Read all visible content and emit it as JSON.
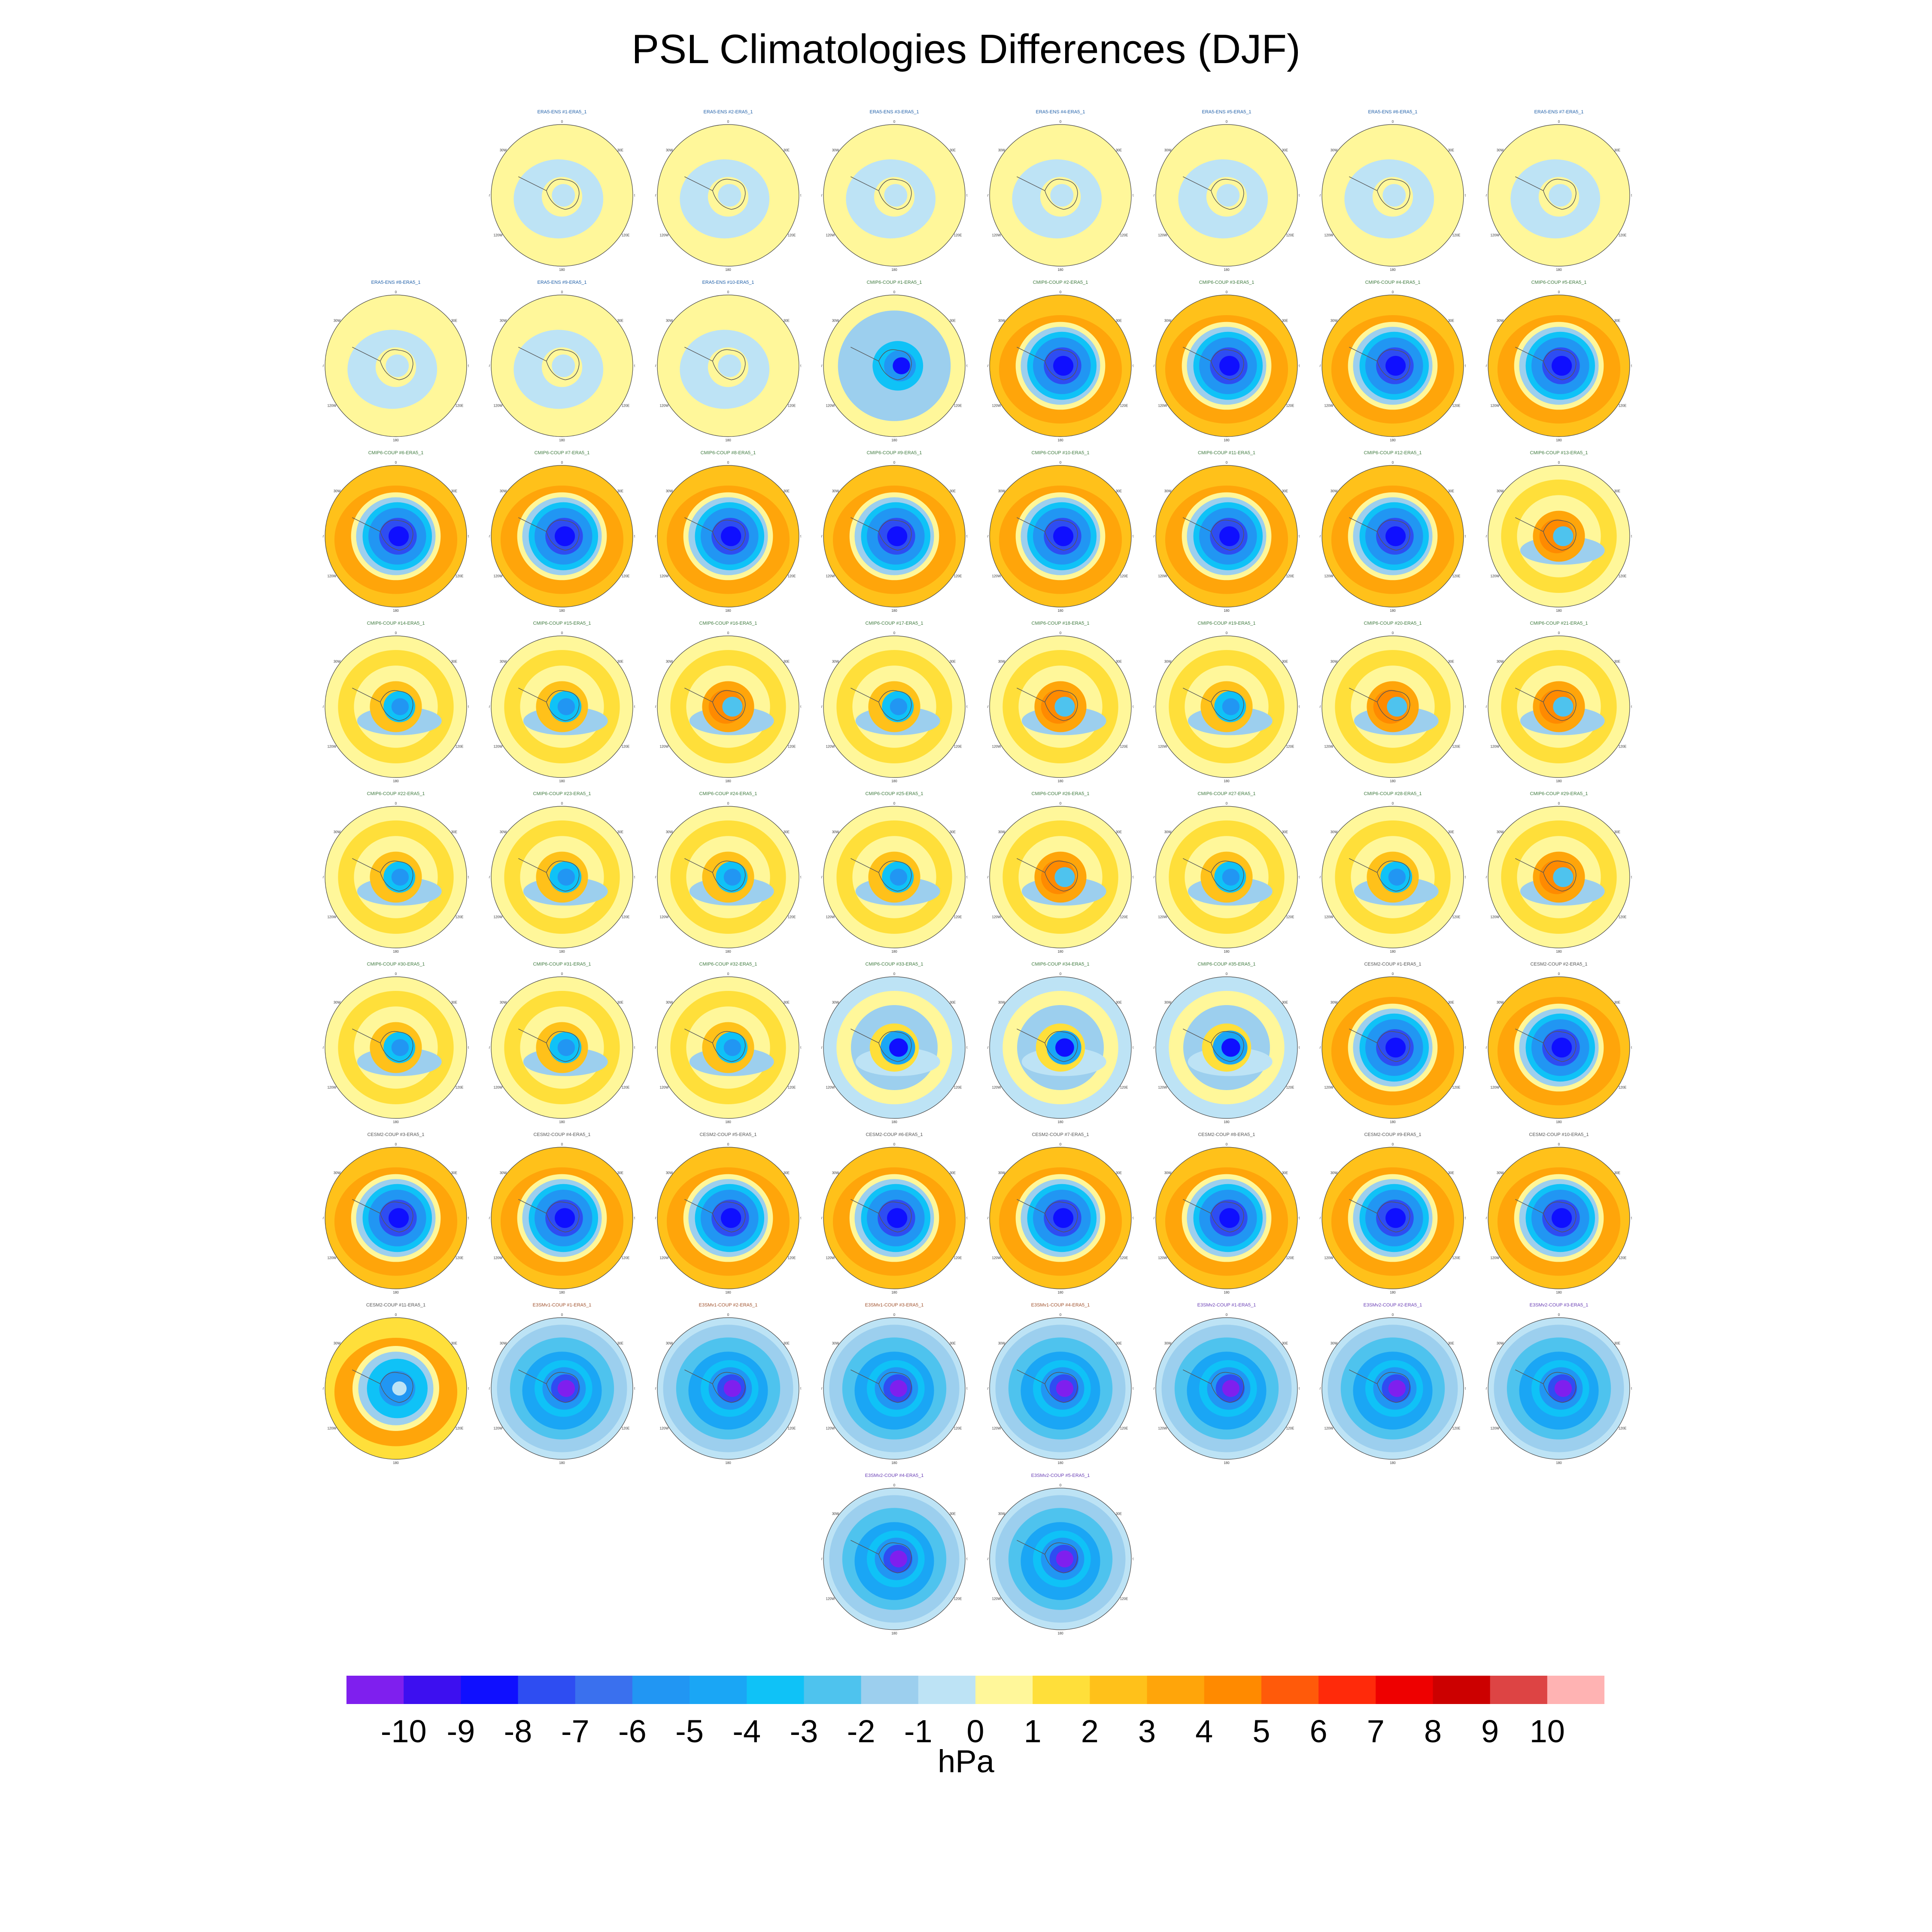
{
  "title": "PSL Climatologies Differences (DJF)",
  "chart_data": {
    "type": "heatmap",
    "projection": "south polar stereographic",
    "title": "PSL Climatologies Differences (DJF)",
    "units": "hPa",
    "colorbar": {
      "levels": [
        -10,
        -9,
        -8,
        -7,
        -6,
        -5,
        -4,
        -3,
        -2,
        -1,
        0,
        1,
        2,
        3,
        4,
        5,
        6,
        7,
        8,
        9,
        10
      ],
      "colors": [
        "#7f1fee",
        "#3d0ff0",
        "#0f0fff",
        "#2e4df2",
        "#3a70ee",
        "#2196f3",
        "#1aa6f5",
        "#0fc2f7",
        "#4ec3ee",
        "#9ccfee",
        "#bde3f5",
        "#fff79a",
        "#ffdf3a",
        "#ffc11a",
        "#ffa50a",
        "#ff8a00",
        "#ff5a0a",
        "#ff2a0a",
        "#ee0000",
        "#cc0000",
        "#dd4444",
        "#ffb3b3"
      ]
    },
    "panels": [
      {
        "title": "ERA5-ENS   #1-ERA5_1",
        "pattern": "ens",
        "group": "ERA5"
      },
      {
        "title": "ERA5-ENS   #2-ERA5_1",
        "pattern": "ens",
        "group": "ERA5"
      },
      {
        "title": "ERA5-ENS   #3-ERA5_1",
        "pattern": "ens",
        "group": "ERA5"
      },
      {
        "title": "ERA5-ENS   #4-ERA5_1",
        "pattern": "ens",
        "group": "ERA5"
      },
      {
        "title": "ERA5-ENS   #5-ERA5_1",
        "pattern": "ens",
        "group": "ERA5"
      },
      {
        "title": "ERA5-ENS   #6-ERA5_1",
        "pattern": "ens",
        "group": "ERA5"
      },
      {
        "title": "ERA5-ENS   #7-ERA5_1",
        "pattern": "ens",
        "group": "ERA5"
      },
      {
        "title": "ERA5-ENS   #8-ERA5_1",
        "pattern": "ens",
        "group": "ERA5"
      },
      {
        "title": "ERA5-ENS   #9-ERA5_1",
        "pattern": "ens",
        "group": "ERA5"
      },
      {
        "title": "ERA5-ENS   #10-ERA5_1",
        "pattern": "ens",
        "group": "ERA5"
      },
      {
        "title": "CMIP6-COUP  #1-ERA5_1",
        "pattern": "lowmix",
        "group": "CMIP6"
      },
      {
        "title": "CMIP6-COUP  #2-ERA5_1",
        "pattern": "strong",
        "group": "CMIP6"
      },
      {
        "title": "CMIP6-COUP  #3-ERA5_1",
        "pattern": "strong",
        "group": "CMIP6"
      },
      {
        "title": "CMIP6-COUP  #4-ERA5_1",
        "pattern": "strong",
        "group": "CMIP6"
      },
      {
        "title": "CMIP6-COUP  #5-ERA5_1",
        "pattern": "strong",
        "group": "CMIP6"
      },
      {
        "title": "CMIP6-COUP  #6-ERA5_1",
        "pattern": "strong",
        "group": "CMIP6"
      },
      {
        "title": "CMIP6-COUP  #7-ERA5_1",
        "pattern": "strong",
        "group": "CMIP6"
      },
      {
        "title": "CMIP6-COUP  #8-ERA5_1",
        "pattern": "strong",
        "group": "CMIP6"
      },
      {
        "title": "CMIP6-COUP  #9-ERA5_1",
        "pattern": "strong",
        "group": "CMIP6"
      },
      {
        "title": "CMIP6-COUP  #10-ERA5_1",
        "pattern": "strong",
        "group": "CMIP6"
      },
      {
        "title": "CMIP6-COUP  #11-ERA5_1",
        "pattern": "strong",
        "group": "CMIP6"
      },
      {
        "title": "CMIP6-COUP  #12-ERA5_1",
        "pattern": "strong",
        "group": "CMIP6"
      },
      {
        "title": "CMIP6-COUP  #13-ERA5_1",
        "pattern": "mixed_red",
        "group": "CMIP6"
      },
      {
        "title": "CMIP6-COUP  #14-ERA5_1",
        "pattern": "mixed",
        "group": "CMIP6"
      },
      {
        "title": "CMIP6-COUP  #15-ERA5_1",
        "pattern": "mixed",
        "group": "CMIP6"
      },
      {
        "title": "CMIP6-COUP  #16-ERA5_1",
        "pattern": "mixed_red",
        "group": "CMIP6"
      },
      {
        "title": "CMIP6-COUP  #17-ERA5_1",
        "pattern": "mixed",
        "group": "CMIP6"
      },
      {
        "title": "CMIP6-COUP  #18-ERA5_1",
        "pattern": "mixed_red",
        "group": "CMIP6"
      },
      {
        "title": "CMIP6-COUP  #19-ERA5_1",
        "pattern": "mixed",
        "group": "CMIP6"
      },
      {
        "title": "CMIP6-COUP  #20-ERA5_1",
        "pattern": "mixed_red",
        "group": "CMIP6"
      },
      {
        "title": "CMIP6-COUP  #21-ERA5_1",
        "pattern": "mixed_red",
        "group": "CMIP6"
      },
      {
        "title": "CMIP6-COUP  #22-ERA5_1",
        "pattern": "mixed",
        "group": "CMIP6"
      },
      {
        "title": "CMIP6-COUP  #23-ERA5_1",
        "pattern": "mixed",
        "group": "CMIP6"
      },
      {
        "title": "CMIP6-COUP  #24-ERA5_1",
        "pattern": "mixed",
        "group": "CMIP6"
      },
      {
        "title": "CMIP6-COUP  #25-ERA5_1",
        "pattern": "mixed",
        "group": "CMIP6"
      },
      {
        "title": "CMIP6-COUP  #26-ERA5_1",
        "pattern": "mixed_red",
        "group": "CMIP6"
      },
      {
        "title": "CMIP6-COUP  #27-ERA5_1",
        "pattern": "mixed",
        "group": "CMIP6"
      },
      {
        "title": "CMIP6-COUP  #28-ERA5_1",
        "pattern": "mixed",
        "group": "CMIP6"
      },
      {
        "title": "CMIP6-COUP  #29-ERA5_1",
        "pattern": "mixed_red",
        "group": "CMIP6"
      },
      {
        "title": "CMIP6-COUP  #30-ERA5_1",
        "pattern": "mixed",
        "group": "CMIP6"
      },
      {
        "title": "CMIP6-COUP  #31-ERA5_1",
        "pattern": "mixed",
        "group": "CMIP6"
      },
      {
        "title": "CMIP6-COUP  #32-ERA5_1",
        "pattern": "mixed",
        "group": "CMIP6"
      },
      {
        "title": "CMIP6-COUP  #33-ERA5_1",
        "pattern": "mixed_blue",
        "group": "CMIP6"
      },
      {
        "title": "CMIP6-COUP  #34-ERA5_1",
        "pattern": "mixed_blue",
        "group": "CMIP6"
      },
      {
        "title": "CMIP6-COUP  #35-ERA5_1",
        "pattern": "mixed_blue",
        "group": "CMIP6"
      },
      {
        "title": "CESM2-COUP  #1-ERA5_1",
        "pattern": "strong",
        "group": "CESM2"
      },
      {
        "title": "CESM2-COUP  #2-ERA5_1",
        "pattern": "strong",
        "group": "CESM2"
      },
      {
        "title": "CESM2-COUP  #3-ERA5_1",
        "pattern": "strong",
        "group": "CESM2"
      },
      {
        "title": "CESM2-COUP  #4-ERA5_1",
        "pattern": "strong",
        "group": "CESM2"
      },
      {
        "title": "CESM2-COUP  #5-ERA5_1",
        "pattern": "strong",
        "group": "CESM2"
      },
      {
        "title": "CESM2-COUP  #6-ERA5_1",
        "pattern": "strong",
        "group": "CESM2"
      },
      {
        "title": "CESM2-COUP  #7-ERA5_1",
        "pattern": "strong",
        "group": "CESM2"
      },
      {
        "title": "CESM2-COUP  #8-ERA5_1",
        "pattern": "strong",
        "group": "CESM2"
      },
      {
        "title": "CESM2-COUP  #9-ERA5_1",
        "pattern": "strong",
        "group": "CESM2"
      },
      {
        "title": "CESM2-COUP  #10-ERA5_1",
        "pattern": "strong",
        "group": "CESM2"
      },
      {
        "title": "CESM2-COUP  #11-ERA5_1",
        "pattern": "strong_weak",
        "group": "CESM2"
      },
      {
        "title": "E3SMv1-COUP  #1-ERA5_1",
        "pattern": "e3sm",
        "group": "E3SMv1"
      },
      {
        "title": "E3SMv1-COUP  #2-ERA5_1",
        "pattern": "e3sm",
        "group": "E3SMv1"
      },
      {
        "title": "E3SMv1-COUP  #3-ERA5_1",
        "pattern": "e3sm",
        "group": "E3SMv1"
      },
      {
        "title": "E3SMv1-COUP  #4-ERA5_1",
        "pattern": "e3sm",
        "group": "E3SMv1"
      },
      {
        "title": "E3SMv2-COUP  #1-ERA5_1",
        "pattern": "e3sm",
        "group": "E3SMv2"
      },
      {
        "title": "E3SMv2-COUP  #2-ERA5_1",
        "pattern": "e3sm",
        "group": "E3SMv2"
      },
      {
        "title": "E3SMv2-COUP  #3-ERA5_1",
        "pattern": "e3sm",
        "group": "E3SMv2"
      },
      {
        "title": "E3SMv2-COUP  #4-ERA5_1",
        "pattern": "e3sm",
        "group": "E3SMv2"
      },
      {
        "title": "E3SMv2-COUP  #5-ERA5_1",
        "pattern": "e3sm",
        "group": "E3SMv2"
      }
    ],
    "group_title_colors": {
      "ERA5": "#1f5fa8",
      "CMIP6": "#3e7a3e",
      "CESM2": "#555555",
      "E3SMv1": "#a0522d",
      "E3SMv2": "#6a3fb5"
    },
    "map_labels": {
      "lon_top": "0",
      "lon_bottom": "180",
      "lon_left": "90W",
      "lon_right": "90E",
      "lon_ul": "30W",
      "lon_ur": "30E",
      "lon_ll": "120W",
      "lon_lr": "120E",
      "lon_bl": "150W",
      "lon_br": "150E"
    }
  }
}
